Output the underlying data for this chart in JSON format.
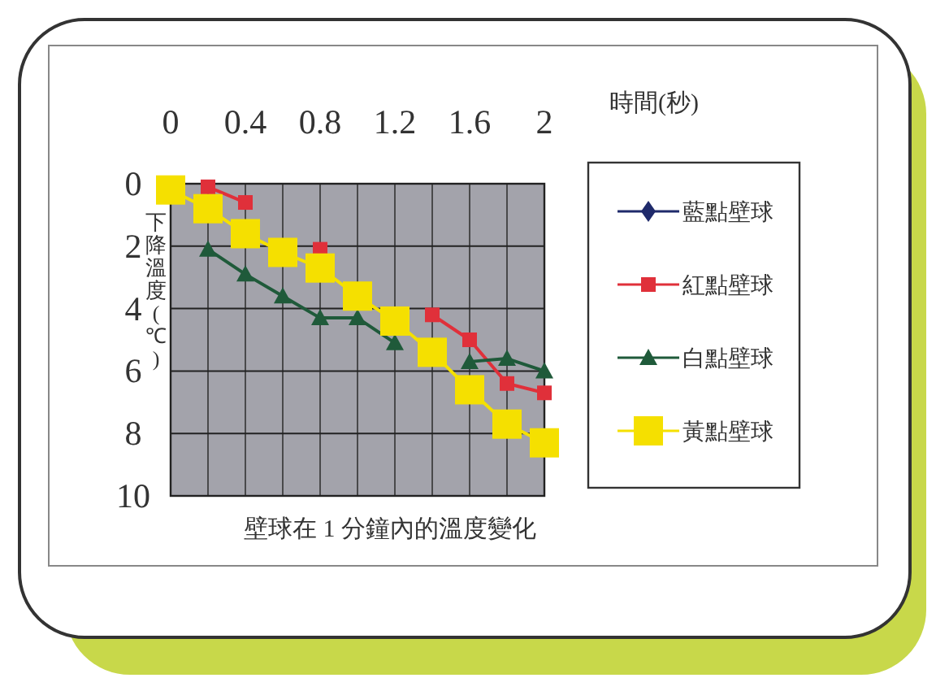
{
  "chart_data": {
    "type": "line",
    "title": "壁球在 1 分鐘內的溫度變化",
    "xlabel": "時間(秒)",
    "ylabel": "下降溫度(℃)",
    "x": [
      0,
      0.2,
      0.4,
      0.6,
      0.8,
      1.0,
      1.2,
      1.4,
      1.6,
      1.8,
      2.0
    ],
    "xlim": [
      0,
      2
    ],
    "xticks": [
      0,
      0.4,
      0.8,
      1.2,
      1.6,
      2
    ],
    "ylim": [
      10,
      0
    ],
    "yticks": [
      0,
      2,
      4,
      6,
      8,
      10
    ],
    "grid": true,
    "legend": "right",
    "series": [
      {
        "name": "藍點壁球",
        "color": "#1f2a6b",
        "marker": "diamond",
        "values": [
          null,
          null,
          null,
          null,
          null,
          null,
          null,
          null,
          null,
          null,
          null
        ]
      },
      {
        "name": "紅點壁球",
        "color": "#e0303a",
        "marker": "square",
        "values": [
          null,
          0.1,
          0.6,
          null,
          2.1,
          null,
          null,
          4.2,
          5.0,
          6.4,
          6.7
        ]
      },
      {
        "name": "白點壁球",
        "color": "#1f5a3a",
        "marker": "triangle",
        "values": [
          null,
          2.1,
          2.9,
          3.6,
          4.3,
          4.3,
          5.1,
          null,
          5.7,
          5.6,
          6.0
        ]
      },
      {
        "name": "黃點壁球",
        "color": "#f5e000",
        "marker": "square",
        "values": [
          0.2,
          0.8,
          1.6,
          2.2,
          2.7,
          3.6,
          4.4,
          5.4,
          6.6,
          7.7,
          8.3
        ]
      }
    ]
  }
}
